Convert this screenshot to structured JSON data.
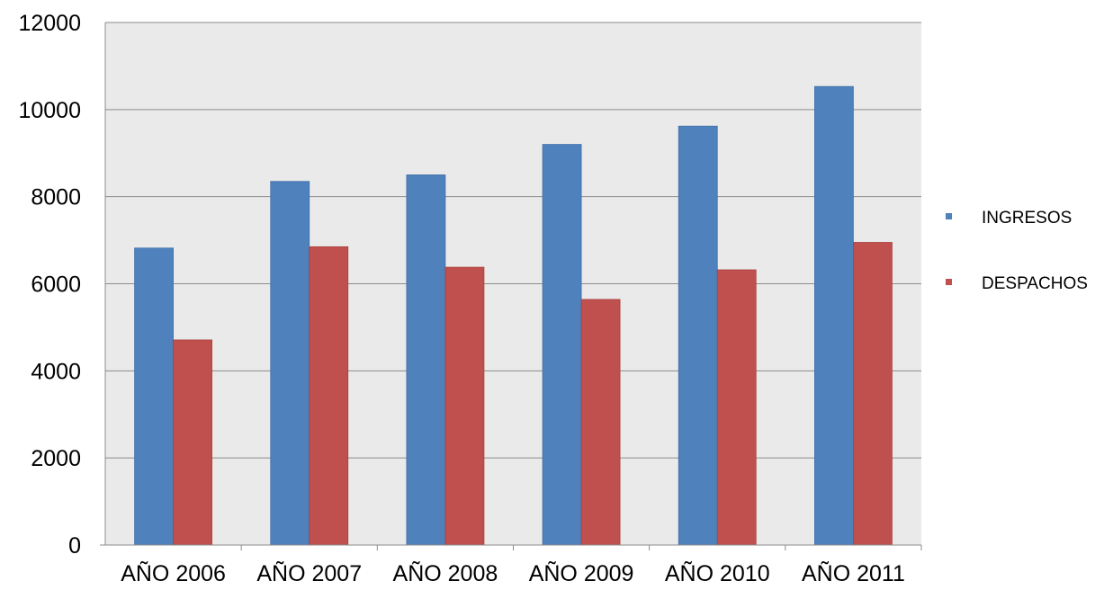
{
  "chart_data": {
    "type": "bar",
    "title": "",
    "xlabel": "",
    "ylabel": "",
    "categories": [
      "AÑO 2006",
      "AÑO 2007",
      "AÑO 2008",
      "AÑO 2009",
      "AÑO 2010",
      "AÑO 2011"
    ],
    "series": [
      {
        "name": "INGRESOS",
        "color": "#4F81BD",
        "values": [
          6820,
          8350,
          8500,
          9200,
          9620,
          10530
        ]
      },
      {
        "name": "DESPACHOS",
        "color": "#C0504D",
        "values": [
          4710,
          6850,
          6380,
          5640,
          6320,
          6950
        ]
      }
    ],
    "ylim": [
      0,
      12000
    ],
    "yticks": [
      0,
      2000,
      4000,
      6000,
      8000,
      10000,
      12000
    ],
    "grid": true,
    "legend_position": "right",
    "plot_background": "#EAEAEA"
  }
}
